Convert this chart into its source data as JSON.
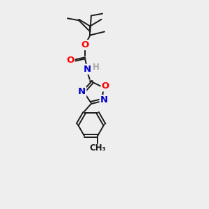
{
  "background_color": "#eeeeee",
  "bond_color": "#1a1a1a",
  "atom_colors": {
    "O": "#ff0000",
    "N": "#0000cc",
    "H": "#aaaaaa",
    "C": "#1a1a1a"
  },
  "figsize": [
    3.0,
    3.0
  ],
  "dpi": 100
}
